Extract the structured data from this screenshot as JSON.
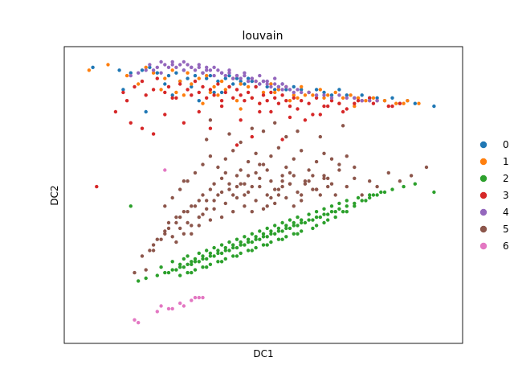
{
  "chart_data": {
    "type": "scatter",
    "title": "louvain",
    "xlabel": "DC1",
    "ylabel": "DC2",
    "xlim": [
      0,
      100
    ],
    "ylim": [
      0,
      100
    ],
    "ticks_visible": false,
    "grid": false,
    "legend": {
      "placement": "right",
      "entries": [
        {
          "label": "0",
          "color": "#1f77b4"
        },
        {
          "label": "1",
          "color": "#ff7f0e"
        },
        {
          "label": "2",
          "color": "#2ca02c"
        },
        {
          "label": "3",
          "color": "#d62728"
        },
        {
          "label": "4",
          "color": "#9467bd"
        },
        {
          "label": "5",
          "color": "#8c564b"
        },
        {
          "label": "6",
          "color": "#e377c2"
        }
      ]
    },
    "series": [
      {
        "name": "0",
        "color": "#1f77b4",
        "x": [
          5,
          12,
          15,
          18,
          20,
          22,
          25,
          27,
          29,
          30,
          32,
          34,
          35,
          36,
          38,
          40,
          41,
          42,
          43,
          44,
          45,
          46,
          47,
          48,
          49,
          50,
          51,
          52,
          53,
          54,
          55,
          56,
          58,
          60,
          62,
          64,
          66,
          68,
          70,
          72,
          74,
          76,
          78,
          80,
          82,
          84,
          86,
          88,
          90,
          95,
          13,
          19,
          26,
          33,
          39,
          28,
          31,
          37,
          24
        ],
        "y": [
          96,
          95,
          94,
          95,
          96,
          94,
          93,
          94,
          95,
          92,
          93,
          94,
          92,
          93,
          91,
          92,
          93,
          90,
          92,
          91,
          90,
          92,
          91,
          89,
          90,
          91,
          89,
          90,
          88,
          89,
          90,
          88,
          89,
          88,
          87,
          88,
          87,
          86,
          88,
          86,
          85,
          86,
          85,
          85,
          84,
          85,
          83,
          84,
          83,
          82,
          88,
          80,
          86,
          84,
          87,
          91,
          89,
          87,
          90
        ]
      },
      {
        "name": "1",
        "color": "#ff7f0e",
        "x": [
          4,
          9,
          14,
          19,
          21,
          24,
          26,
          28,
          30,
          31,
          33,
          35,
          37,
          39,
          40,
          42,
          44,
          46,
          48,
          50,
          52,
          54,
          56,
          58,
          60,
          62,
          63,
          65,
          67,
          69,
          71,
          73,
          75,
          77,
          79,
          82,
          85,
          87,
          88,
          91,
          17,
          23,
          29,
          36,
          41,
          47,
          53,
          59,
          66,
          38,
          43,
          34,
          70,
          74,
          78,
          61,
          57,
          49,
          44,
          27
        ],
        "y": [
          95,
          97,
          93,
          96,
          94,
          92,
          95,
          91,
          94,
          90,
          92,
          93,
          89,
          91,
          88,
          92,
          90,
          89,
          91,
          87,
          90,
          88,
          89,
          86,
          89,
          87,
          86,
          88,
          86,
          87,
          85,
          86,
          85,
          84,
          85,
          84,
          83,
          83,
          84,
          83,
          90,
          88,
          86,
          87,
          89,
          85,
          87,
          85,
          85,
          86,
          84,
          83,
          83,
          82,
          84,
          86,
          84,
          83,
          81,
          87
        ]
      },
      {
        "name": "2",
        "color": "#2ca02c",
        "x": [
          17,
          19,
          22,
          24,
          25,
          26,
          27,
          28,
          29,
          30,
          31,
          32,
          33,
          34,
          35,
          36,
          37,
          38,
          39,
          40,
          41,
          42,
          43,
          44,
          45,
          46,
          47,
          48,
          49,
          50,
          51,
          52,
          53,
          54,
          55,
          56,
          57,
          58,
          59,
          60,
          61,
          62,
          63,
          64,
          65,
          66,
          67,
          68,
          69,
          70,
          72,
          74,
          76,
          78,
          80,
          82,
          84,
          87,
          90,
          95,
          15,
          23,
          26,
          28,
          29,
          30,
          31,
          32,
          33,
          34,
          35,
          36,
          37,
          38,
          39,
          40,
          41,
          42,
          43,
          44,
          45,
          46,
          47,
          48,
          49,
          50,
          51,
          52,
          53,
          54,
          55,
          56,
          57,
          58,
          59,
          60,
          62,
          64,
          66,
          68,
          70,
          72,
          75,
          78,
          81,
          30,
          32,
          34,
          36,
          38,
          40,
          42,
          44,
          46,
          48,
          50,
          52,
          54,
          56,
          58,
          60,
          63,
          66,
          69,
          72,
          28,
          31,
          35,
          39,
          43,
          47,
          51,
          55,
          59,
          64,
          67,
          71,
          74,
          77,
          79
        ],
        "y": [
          19,
          20,
          21,
          22,
          22,
          23,
          23,
          24,
          24,
          25,
          25,
          26,
          26,
          27,
          27,
          28,
          28,
          29,
          29,
          30,
          30,
          31,
          31,
          32,
          32,
          33,
          33,
          34,
          34,
          35,
          35,
          36,
          36,
          37,
          37,
          38,
          38,
          39,
          39,
          40,
          40,
          41,
          41,
          42,
          42,
          43,
          43,
          44,
          44,
          45,
          46,
          47,
          48,
          49,
          50,
          51,
          52,
          53,
          54,
          51,
          46,
          24,
          26,
          25,
          27,
          28,
          26,
          27,
          29,
          28,
          30,
          29,
          31,
          30,
          32,
          31,
          33,
          32,
          34,
          33,
          35,
          34,
          36,
          35,
          37,
          36,
          38,
          37,
          39,
          38,
          40,
          39,
          41,
          40,
          42,
          41,
          43,
          44,
          45,
          46,
          47,
          48,
          49,
          50,
          51,
          22,
          23,
          24,
          25,
          26,
          27,
          28,
          29,
          30,
          31,
          32,
          33,
          34,
          35,
          36,
          37,
          38,
          40,
          42,
          44,
          21,
          22,
          24,
          26,
          28,
          30,
          32,
          34,
          36,
          39,
          41,
          44,
          46,
          48,
          50
        ]
      },
      {
        "name": "3",
        "color": "#d62728",
        "x": [
          6,
          11,
          14,
          16,
          18,
          19,
          21,
          22,
          24,
          25,
          27,
          28,
          30,
          31,
          32,
          33,
          34,
          35,
          36,
          37,
          38,
          39,
          40,
          41,
          42,
          43,
          44,
          45,
          46,
          47,
          48,
          49,
          50,
          51,
          52,
          53,
          54,
          55,
          56,
          57,
          58,
          60,
          62,
          64,
          66,
          68,
          70,
          72,
          74,
          76,
          78,
          80,
          83,
          86,
          13,
          15,
          21,
          24,
          36,
          44,
          47,
          52,
          57,
          61,
          65,
          55,
          43,
          33,
          29,
          18,
          26,
          39,
          49,
          59,
          63,
          67,
          71,
          75,
          79,
          84
        ],
        "y": [
          53,
          80,
          84,
          89,
          91,
          86,
          88,
          92,
          87,
          89,
          85,
          90,
          88,
          86,
          91,
          87,
          89,
          85,
          88,
          86,
          90,
          84,
          87,
          89,
          85,
          88,
          86,
          84,
          87,
          85,
          89,
          83,
          86,
          84,
          87,
          85,
          83,
          86,
          84,
          82,
          85,
          84,
          83,
          85,
          82,
          84,
          83,
          81,
          83,
          84,
          85,
          84,
          82,
          83,
          87,
          76,
          72,
          79,
          74,
          77,
          71,
          80,
          78,
          77,
          79,
          70,
          68,
          80,
          76,
          74,
          85,
          82,
          80,
          81,
          79,
          82,
          80,
          84,
          83,
          82
        ]
      },
      {
        "name": "4",
        "color": "#9467bd",
        "x": [
          20,
          22,
          23,
          24,
          25,
          26,
          27,
          28,
          29,
          30,
          31,
          32,
          33,
          34,
          35,
          36,
          37,
          38,
          39,
          40,
          41,
          42,
          43,
          44,
          45,
          46,
          47,
          48,
          49,
          50,
          51,
          52,
          53,
          54,
          55,
          56,
          57,
          58,
          59,
          60,
          62,
          64,
          66,
          68,
          70,
          72,
          74,
          76,
          78,
          80,
          15,
          17,
          19,
          21,
          23,
          26,
          29,
          31,
          33,
          35,
          37,
          39,
          41,
          43,
          45,
          47,
          49,
          51,
          53,
          55
        ],
        "y": [
          97,
          96,
          98,
          97,
          96,
          98,
          96,
          97,
          95,
          97,
          96,
          95,
          96,
          94,
          96,
          95,
          93,
          95,
          94,
          93,
          94,
          92,
          93,
          92,
          93,
          91,
          92,
          91,
          90,
          91,
          90,
          89,
          90,
          89,
          88,
          89,
          88,
          87,
          88,
          87,
          87,
          86,
          86,
          85,
          86,
          85,
          85,
          84,
          84,
          84,
          93,
          94,
          95,
          95,
          94,
          97,
          98,
          96,
          97,
          95,
          96,
          94,
          95,
          93,
          94,
          92,
          93,
          91,
          92,
          90
        ]
      },
      {
        "name": "5",
        "color": "#8c564b",
        "x": [
          16,
          19,
          21,
          23,
          24,
          25,
          26,
          27,
          28,
          29,
          30,
          31,
          32,
          33,
          34,
          35,
          36,
          37,
          38,
          39,
          40,
          41,
          42,
          43,
          44,
          45,
          46,
          47,
          48,
          49,
          50,
          51,
          52,
          53,
          54,
          55,
          56,
          57,
          58,
          60,
          62,
          64,
          66,
          68,
          70,
          72,
          74,
          76,
          78,
          80,
          83,
          86,
          89,
          93,
          24,
          26,
          28,
          30,
          32,
          34,
          36,
          38,
          40,
          42,
          44,
          46,
          48,
          50,
          52,
          54,
          56,
          58,
          60,
          62,
          64,
          66,
          68,
          70,
          72,
          74,
          27,
          29,
          31,
          33,
          35,
          37,
          39,
          41,
          43,
          45,
          47,
          49,
          51,
          53,
          55,
          57,
          59,
          61,
          63,
          65,
          67,
          20,
          22,
          25,
          28,
          31,
          34,
          37,
          40,
          43,
          46,
          49,
          52,
          55,
          58,
          61,
          64,
          67,
          18,
          21,
          24,
          27,
          30,
          33,
          36,
          39,
          42,
          45,
          48,
          51,
          54,
          57,
          60,
          63,
          66,
          69,
          29,
          35,
          41,
          47,
          53,
          59,
          65,
          71,
          36,
          44,
          50,
          56
        ],
        "y": [
          22,
          23,
          30,
          34,
          37,
          40,
          35,
          42,
          38,
          44,
          40,
          36,
          46,
          39,
          43,
          48,
          41,
          45,
          50,
          42,
          47,
          52,
          44,
          49,
          54,
          46,
          51,
          44,
          48,
          53,
          45,
          50,
          55,
          47,
          52,
          57,
          49,
          54,
          46,
          50,
          55,
          52,
          57,
          54,
          59,
          53,
          56,
          50,
          55,
          53,
          58,
          55,
          57,
          60,
          46,
          49,
          52,
          55,
          58,
          61,
          64,
          60,
          63,
          66,
          59,
          62,
          65,
          61,
          64,
          67,
          60,
          63,
          66,
          59,
          62,
          65,
          63,
          61,
          64,
          60,
          33,
          36,
          39,
          42,
          45,
          48,
          51,
          54,
          57,
          50,
          53,
          56,
          59,
          52,
          55,
          58,
          51,
          54,
          57,
          50,
          53,
          30,
          34,
          38,
          42,
          46,
          50,
          54,
          58,
          53,
          57,
          61,
          49,
          53,
          57,
          55,
          52,
          56,
          28,
          32,
          36,
          40,
          44,
          48,
          52,
          56,
          50,
          54,
          58,
          46,
          50,
          54,
          48,
          52,
          56,
          50,
          55,
          70,
          72,
          74,
          76,
          73,
          71,
          75,
          77,
          69,
          73,
          71
        ]
      },
      {
        "name": "6",
        "color": "#e377c2",
        "x": [
          16,
          17,
          22,
          23,
          25,
          26,
          28,
          31,
          32,
          33,
          34,
          24,
          29
        ],
        "y": [
          5,
          4,
          8,
          10,
          9,
          9,
          11,
          12,
          13,
          13,
          13,
          59,
          10
        ]
      }
    ]
  }
}
